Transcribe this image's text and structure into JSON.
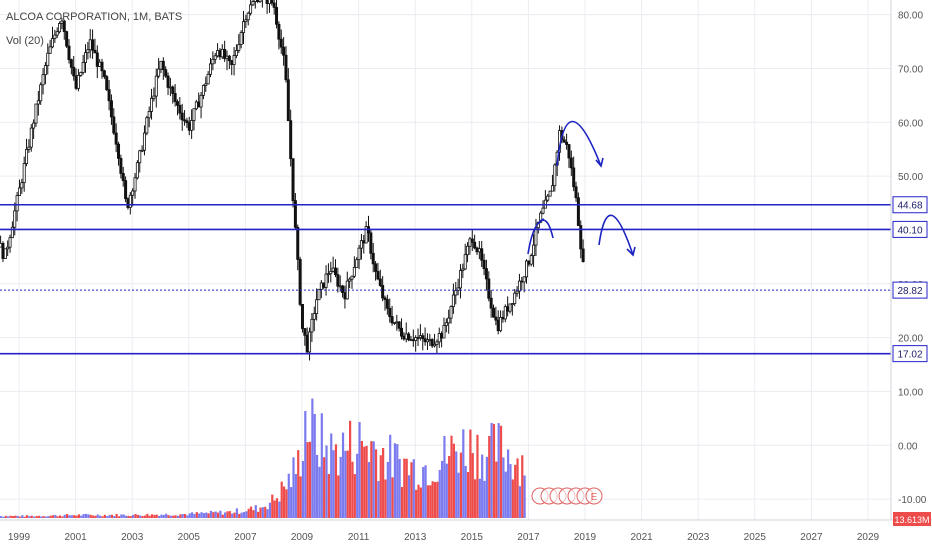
{
  "header": {
    "title": "ALCOA CORPORATION, 1M, BATS",
    "volume_label": "Vol (20)"
  },
  "colors": {
    "horizontal_line": "#2422c8",
    "dotted_line": "#2422c8",
    "drawing": "#1d24c0",
    "candle": "#111111",
    "volume_up": "#7b7bef",
    "volume_down": "#ee4b4b",
    "grid": "#e9ecf1",
    "earnings_marker": "#e06363"
  },
  "chart_data": {
    "type": "candlestick",
    "title": "ALCOA CORPORATION, 1M, BATS",
    "xlabel": "",
    "ylabel": "",
    "x_ticks": [
      "1999",
      "2001",
      "2003",
      "2005",
      "2007",
      "2009",
      "2011",
      "2013",
      "2015",
      "2017",
      "2019",
      "2021",
      "2023",
      "2025",
      "2027",
      "2029"
    ],
    "y_ticks": [
      "80.00",
      "70.00",
      "60.00",
      "50.00",
      "40.00",
      "30.00",
      "20.00",
      "10.00",
      "0.00",
      "-10.00"
    ],
    "grid": true,
    "price_series": {
      "name": "",
      "years": [
        1998.1,
        1998.5,
        1999.0,
        1999.5,
        2000.0,
        2000.5,
        2001.0,
        2001.5,
        2002.0,
        2002.5,
        2002.8,
        2003.2,
        2003.6,
        2004.0,
        2004.5,
        2005.0,
        2005.5,
        2006.0,
        2006.5,
        2007.0,
        2007.5,
        2008.0,
        2008.4,
        2008.7,
        2009.0,
        2009.2,
        2009.5,
        2010.0,
        2010.5,
        2011.0,
        2011.3,
        2011.6,
        2012.0,
        2012.5,
        2013.0,
        2013.5,
        2014.0,
        2014.5,
        2015.0,
        2015.3,
        2015.6,
        2015.9,
        2016.1,
        2016.5,
        2017.0,
        2017.4,
        2017.8,
        2018.1,
        2018.4,
        2018.7,
        2019.0
      ],
      "values": [
        39.5,
        35,
        47,
        60,
        72,
        80,
        66,
        75,
        68,
        55,
        44,
        52,
        62,
        71,
        64,
        59,
        66,
        74,
        70,
        80,
        84,
        82,
        70,
        45,
        22,
        18,
        27,
        33,
        28,
        36,
        40,
        32,
        25,
        21,
        20,
        19,
        21,
        30,
        39,
        35,
        28,
        22,
        24,
        28,
        34,
        42,
        47,
        58,
        55,
        45,
        30
      ]
    },
    "volume_series": {
      "name": "Vol (20)",
      "years": [
        1998.2,
        1999.5,
        2001.0,
        2003.0,
        2005.0,
        2006.5,
        2007.5,
        2008.0,
        2008.5,
        2008.9,
        2009.1,
        2009.5,
        2010.0,
        2010.5,
        2011.0,
        2011.5,
        2012.0,
        2012.5,
        2013.0,
        2013.5,
        2014.0,
        2014.5,
        2015.0,
        2015.5,
        2016.0,
        2016.5,
        2016.9
      ],
      "values": [
        2,
        2,
        3,
        3,
        4,
        6,
        10,
        18,
        35,
        55,
        100,
        80,
        65,
        70,
        75,
        72,
        60,
        55,
        50,
        52,
        60,
        70,
        72,
        65,
        70,
        60,
        55
      ]
    },
    "horizontal_levels": [
      {
        "value": 44.68,
        "label": "44.68",
        "style": "solid"
      },
      {
        "value": 40.1,
        "label": "40.10",
        "style": "solid"
      },
      {
        "value": 28.82,
        "label": "28.82",
        "style": "dotted"
      },
      {
        "value": 17.02,
        "label": "17.02",
        "style": "solid"
      }
    ],
    "volume_last_label": "13.613M",
    "earnings_label": "E"
  }
}
